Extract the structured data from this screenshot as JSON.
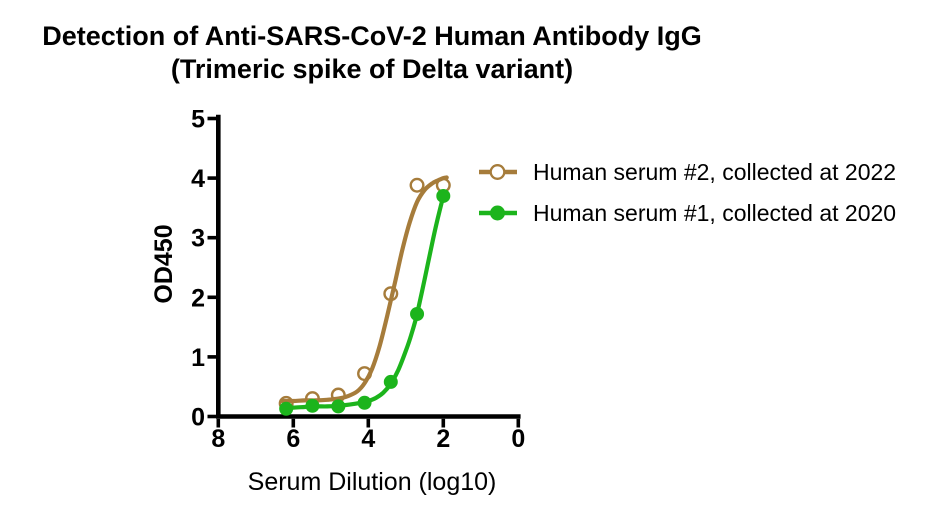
{
  "title": {
    "line1": "Detection of Anti-SARS-CoV-2 Human Antibody IgG",
    "line2": "(Trimeric spike of Delta variant)"
  },
  "chart_data": {
    "type": "scatter",
    "title": "Detection of Anti-SARS-CoV-2 Human Antibody IgG (Trimeric spike of Delta variant)",
    "xlabel": "Serum Dilution (log10)",
    "ylabel": "OD450",
    "x_axis": {
      "min": 8,
      "max": 0,
      "reversed": true,
      "tick_values": [
        8,
        6,
        4,
        2,
        0
      ],
      "tick_labels": [
        "8",
        "6",
        "4",
        "2",
        "0"
      ]
    },
    "y_axis": {
      "min": 0,
      "max": 5,
      "tick_values": [
        0,
        1,
        2,
        3,
        4,
        5
      ],
      "tick_labels": [
        "0",
        "1",
        "2",
        "3",
        "4",
        "5"
      ]
    },
    "grid": false,
    "legend_position": "right",
    "series": [
      {
        "name": "Human serum #2, collected at 2022",
        "color": "#A67C3B",
        "marker": "open-circle",
        "x": [
          6.19,
          5.49,
          4.8,
          4.1,
          3.4,
          2.7,
          2.0
        ],
        "y": [
          0.22,
          0.3,
          0.36,
          0.72,
          2.06,
          3.88,
          3.88
        ],
        "fit_curve": {
          "x": [
            6.3,
            6.0,
            5.7,
            5.4,
            5.1,
            4.8,
            4.55,
            4.3,
            4.1,
            3.9,
            3.7,
            3.5,
            3.3,
            3.1,
            2.9,
            2.7,
            2.5,
            2.3,
            2.15,
            2.0,
            1.91
          ],
          "y": [
            0.26,
            0.26,
            0.27,
            0.27,
            0.28,
            0.3,
            0.34,
            0.42,
            0.56,
            0.8,
            1.18,
            1.68,
            2.22,
            2.78,
            3.25,
            3.6,
            3.8,
            3.91,
            3.96,
            4.0,
            4.01
          ]
        }
      },
      {
        "name": "Human serum #1, collected at 2020",
        "color": "#1CB41C",
        "marker": "filled-circle",
        "x": [
          6.19,
          5.49,
          4.8,
          4.1,
          3.4,
          2.7,
          2.0
        ],
        "y": [
          0.13,
          0.18,
          0.17,
          0.23,
          0.58,
          1.72,
          3.7
        ],
        "fit_curve": {
          "x": [
            6.3,
            6.0,
            5.7,
            5.4,
            5.1,
            4.8,
            4.5,
            4.2,
            4.0,
            3.8,
            3.6,
            3.4,
            3.2,
            3.0,
            2.85,
            2.7,
            2.5,
            2.3,
            2.15,
            2.0
          ],
          "y": [
            0.13,
            0.15,
            0.16,
            0.17,
            0.17,
            0.18,
            0.2,
            0.23,
            0.26,
            0.31,
            0.4,
            0.55,
            0.78,
            1.1,
            1.38,
            1.72,
            2.3,
            2.9,
            3.32,
            3.7
          ]
        }
      }
    ]
  }
}
